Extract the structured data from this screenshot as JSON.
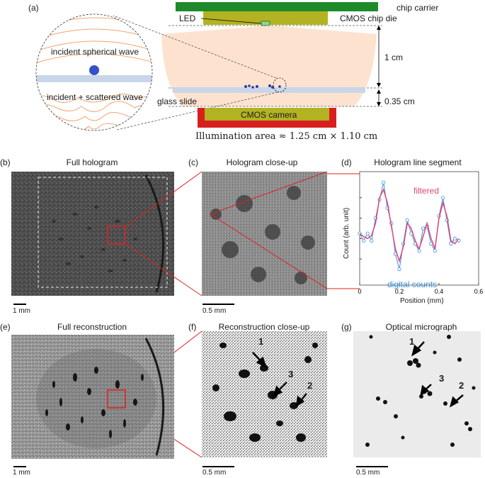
{
  "panel_a": {
    "letter": "(a)",
    "chip_carrier": "chip carrier",
    "led": "LED",
    "cmos_die": "CMOS chip die",
    "dist_1": "1 cm",
    "dist_2": "0.35 cm",
    "glass_slide": "glass slide",
    "camera": "CMOS camera",
    "incident": "incident spherical wave",
    "scattered": "incident + scattered wave",
    "illum": "Illumination area ≈ 1.25 cm × 1.10 cm"
  },
  "panel_b": {
    "letter": "(b)",
    "title": "Full hologram",
    "scale": "1 mm"
  },
  "panel_c": {
    "letter": "(c)",
    "title": "Hologram close-up",
    "scale": "0.5 mm"
  },
  "panel_d": {
    "letter": "(d)",
    "title": "Hologram line segment",
    "ylabel": "Count (arb. unit)",
    "xlabel": "Position (mm)",
    "filtered": "filtered",
    "digital": "digital counts",
    "xticks": [
      "0",
      "0.2",
      "0.4",
      "0.6"
    ]
  },
  "panel_e": {
    "letter": "(e)",
    "title": "Full reconstruction",
    "scale": "1 mm"
  },
  "panel_f": {
    "letter": "(f)",
    "title": "Reconstruction close-up",
    "scale": "0.5 mm",
    "m1": "1",
    "m2": "2",
    "m3": "3"
  },
  "panel_g": {
    "letter": "(g)",
    "title": "Optical micrograph",
    "scale": "0.5 mm",
    "m1": "1",
    "m2": "2",
    "m3": "3"
  },
  "colors": {
    "filtered": "#e0457b",
    "digital": "#3a8fd6",
    "highlight": "#e02020"
  },
  "chart_data": {
    "type": "line",
    "title": "Hologram line segment",
    "xlabel": "Position (mm)",
    "ylabel": "Count (arb. unit)",
    "xlim": [
      0,
      0.6
    ],
    "xticks": [
      0,
      0.2,
      0.4,
      0.6
    ],
    "series": [
      {
        "name": "filtered",
        "x": [
          0.0,
          0.02,
          0.04,
          0.06,
          0.08,
          0.1,
          0.12,
          0.14,
          0.16,
          0.18,
          0.2,
          0.22,
          0.24,
          0.26,
          0.28,
          0.3,
          0.32,
          0.34,
          0.36,
          0.38,
          0.4,
          0.42,
          0.44,
          0.46,
          0.48,
          0.5
        ],
        "y": [
          0.45,
          0.42,
          0.4,
          0.43,
          0.55,
          0.8,
          0.88,
          0.75,
          0.52,
          0.3,
          0.18,
          0.32,
          0.55,
          0.5,
          0.38,
          0.3,
          0.42,
          0.55,
          0.4,
          0.3,
          0.6,
          0.75,
          0.62,
          0.38,
          0.35,
          0.4
        ]
      },
      {
        "name": "digital counts",
        "x": [
          0.0,
          0.02,
          0.04,
          0.06,
          0.08,
          0.1,
          0.12,
          0.14,
          0.16,
          0.18,
          0.2,
          0.22,
          0.24,
          0.26,
          0.28,
          0.3,
          0.32,
          0.34,
          0.36,
          0.38,
          0.4,
          0.42,
          0.44,
          0.46,
          0.48,
          0.5
        ],
        "y": [
          0.45,
          0.38,
          0.45,
          0.38,
          0.6,
          0.78,
          0.95,
          0.7,
          0.55,
          0.25,
          0.1,
          0.35,
          0.58,
          0.45,
          0.35,
          0.28,
          0.5,
          0.52,
          0.35,
          0.28,
          0.62,
          0.8,
          0.58,
          0.35,
          0.4,
          0.38
        ]
      }
    ]
  }
}
